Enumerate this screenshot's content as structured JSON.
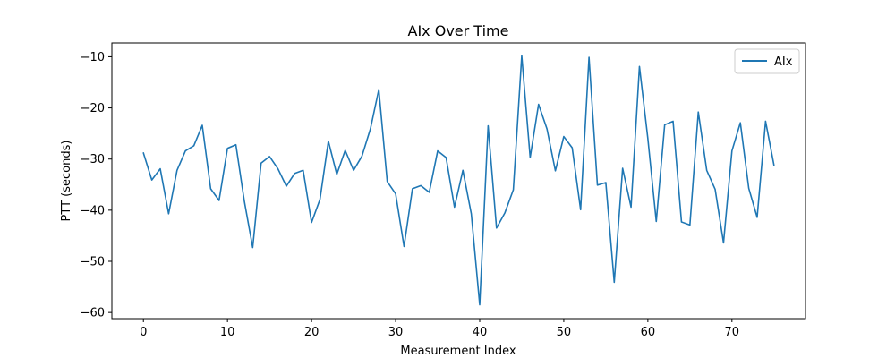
{
  "chart_data": {
    "type": "line",
    "title": "AIx Over Time",
    "xlabel": "Measurement Index",
    "ylabel": "PTT (seconds)",
    "xlim": [
      -3.75,
      78.75
    ],
    "ylim": [
      -61.2,
      -7.3
    ],
    "xticks": [
      0,
      10,
      20,
      30,
      40,
      50,
      60,
      70
    ],
    "yticks": [
      -60,
      -50,
      -40,
      -30,
      -20,
      -10
    ],
    "grid": false,
    "legend_position": "top-right",
    "series": [
      {
        "name": "AIx",
        "color": "#1f77b4",
        "x": [
          0,
          1,
          2,
          3,
          4,
          5,
          6,
          7,
          8,
          9,
          10,
          11,
          12,
          13,
          14,
          15,
          16,
          17,
          18,
          19,
          20,
          21,
          22,
          23,
          24,
          25,
          26,
          27,
          28,
          29,
          30,
          31,
          32,
          33,
          34,
          35,
          36,
          37,
          38,
          39,
          40,
          41,
          42,
          43,
          44,
          45,
          46,
          47,
          48,
          49,
          50,
          51,
          52,
          53,
          54,
          55,
          56,
          57,
          58,
          59,
          60,
          61,
          62,
          63,
          64,
          65,
          66,
          67,
          68,
          69,
          70,
          71,
          72,
          73,
          74,
          75
        ],
        "values": [
          -28.8,
          -34.1,
          -31.9,
          -40.7,
          -32.2,
          -28.4,
          -27.4,
          -23.4,
          -35.8,
          -38.1,
          -27.9,
          -27.2,
          -38.2,
          -47.3,
          -30.8,
          -29.5,
          -31.9,
          -35.3,
          -32.8,
          -32.2,
          -42.4,
          -37.9,
          -26.5,
          -33.0,
          -28.3,
          -32.2,
          -29.4,
          -24.1,
          -16.4,
          -34.4,
          -36.8,
          -47.1,
          -35.8,
          -35.2,
          -36.5,
          -28.4,
          -29.7,
          -39.4,
          -32.2,
          -40.7,
          -58.5,
          -23.5,
          -43.5,
          -40.5,
          -36.0,
          -9.8,
          -29.7,
          -19.3,
          -24.1,
          -32.3,
          -25.6,
          -27.8,
          -39.9,
          -10.1,
          -35.1,
          -34.6,
          -54.1,
          -31.8,
          -39.4,
          -11.9,
          -26.0,
          -42.2,
          -23.3,
          -22.6,
          -42.3,
          -42.9,
          -20.8,
          -32.2,
          -35.9,
          -46.4,
          -28.4,
          -22.9,
          -35.7,
          -41.4,
          -22.6,
          -31.2
        ]
      }
    ]
  }
}
